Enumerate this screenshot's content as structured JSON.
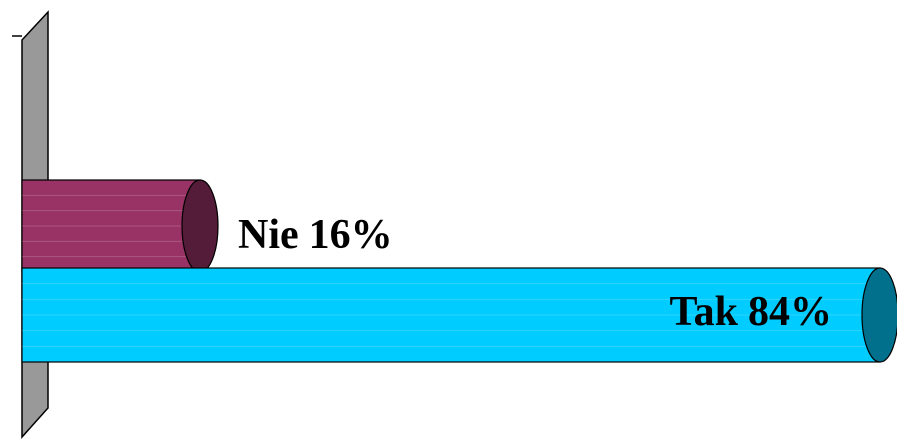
{
  "chart_data": {
    "type": "bar",
    "orientation": "horizontal",
    "categories": [
      "Nie",
      "Tak"
    ],
    "values": [
      16,
      84
    ],
    "value_labels": [
      "16%",
      "84%"
    ],
    "colors": [
      "#993366",
      "#00ccff"
    ]
  }
}
